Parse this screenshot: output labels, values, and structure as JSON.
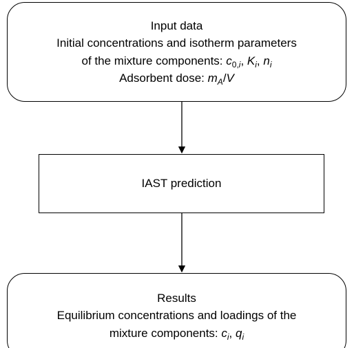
{
  "nodes": [
    {
      "lines": [
        [
          "Input data"
        ],
        [
          "Initial concentrations and isotherm parameters"
        ],
        [
          "of the mixture components: ",
          "c",
          "0,",
          "i",
          ", ",
          "K",
          "i",
          ", ",
          "n",
          "i"
        ],
        [
          "Adsorbent dose: ",
          "m",
          "A",
          "/",
          "V"
        ]
      ]
    },
    {
      "lines": [
        [
          "IAST prediction"
        ]
      ]
    },
    {
      "lines": [
        [
          "Results"
        ],
        [
          "Equilibrium concentrations and loadings of the"
        ],
        [
          "mixture components: ",
          "c",
          "i",
          ", ",
          "q",
          "i"
        ]
      ]
    }
  ]
}
